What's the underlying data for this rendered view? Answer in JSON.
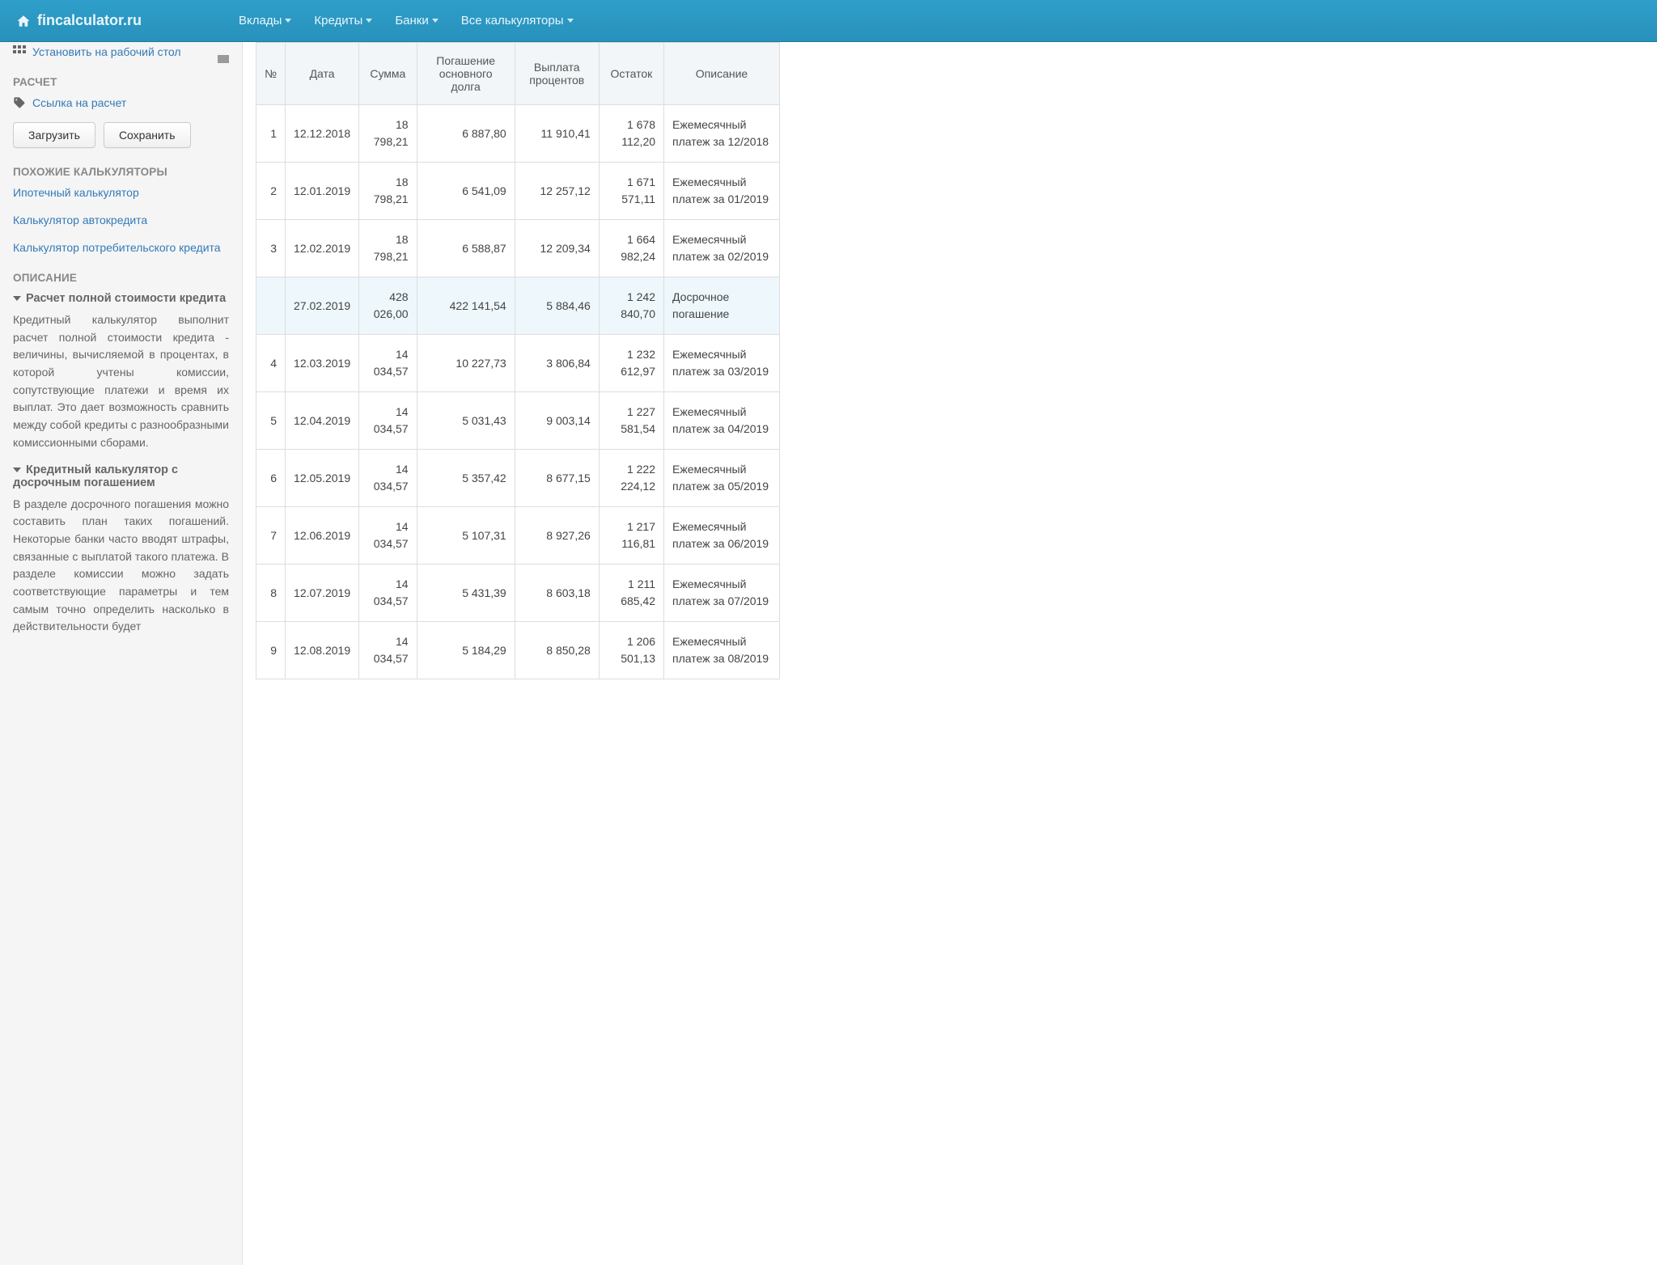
{
  "navbar": {
    "brand": "fincalculator.ru",
    "menu": [
      "Вклады",
      "Кредиты",
      "Банки",
      "Все калькуляторы"
    ]
  },
  "sidebar": {
    "install_link": "Установить на рабочий стол",
    "sections": {
      "calc_heading": "РАСЧЕТ",
      "calc_link": "Ссылка на расчет",
      "btn_load": "Загрузить",
      "btn_save": "Сохранить",
      "similar_heading": "ПОХОЖИЕ КАЛЬКУЛЯТОРЫ",
      "similar_links": [
        "Ипотечный калькулятор",
        "Калькулятор автокредита",
        "Калькулятор потребительского кредита"
      ],
      "desc_heading": "ОПИСАНИЕ",
      "desc1_title": "Расчет полной стоимости кредита",
      "desc1_body": "Кредитный калькулятор выполнит расчет полной стоимости кредита - величины, вычисляемой в процентах, в которой учтены комиссии, сопутствующие платежи и время их выплат. Это дает возможность сравнить между собой кредиты с разнообразными комиссионными сборами.",
      "desc2_title": "Кредитный калькулятор с досрочным погашением",
      "desc2_body": "В разделе досрочного погашения можно составить план таких погашений. Некоторые банки часто вводят штрафы, связанные с выплатой такого платежа. В разделе комиссии можно задать соответствующие параметры и тем самым точно определить насколько в действительности будет"
    }
  },
  "table": {
    "columns": [
      "№",
      "Дата",
      "Сумма",
      "Погашение основного долга",
      "Выплата процентов",
      "Остаток",
      "Описание"
    ],
    "rows": [
      {
        "idx": "1",
        "date": "12.12.2018",
        "sum": "18 798,21",
        "princ": "6 887,80",
        "intr": "11 910,41",
        "rem": "1 678 112,20",
        "desc": "Ежемесячный платеж за 12/2018",
        "hl": false
      },
      {
        "idx": "2",
        "date": "12.01.2019",
        "sum": "18 798,21",
        "princ": "6 541,09",
        "intr": "12 257,12",
        "rem": "1 671 571,11",
        "desc": "Ежемесячный платеж за 01/2019",
        "hl": false
      },
      {
        "idx": "3",
        "date": "12.02.2019",
        "sum": "18 798,21",
        "princ": "6 588,87",
        "intr": "12 209,34",
        "rem": "1 664 982,24",
        "desc": "Ежемесячный платеж за 02/2019",
        "hl": false
      },
      {
        "idx": "",
        "date": "27.02.2019",
        "sum": "428 026,00",
        "princ": "422 141,54",
        "intr": "5 884,46",
        "rem": "1 242 840,70",
        "desc": "Досрочное погашение",
        "hl": true
      },
      {
        "idx": "4",
        "date": "12.03.2019",
        "sum": "14 034,57",
        "princ": "10 227,73",
        "intr": "3 806,84",
        "rem": "1 232 612,97",
        "desc": "Ежемесячный платеж за 03/2019",
        "hl": false
      },
      {
        "idx": "5",
        "date": "12.04.2019",
        "sum": "14 034,57",
        "princ": "5 031,43",
        "intr": "9 003,14",
        "rem": "1 227 581,54",
        "desc": "Ежемесячный платеж за 04/2019",
        "hl": false
      },
      {
        "idx": "6",
        "date": "12.05.2019",
        "sum": "14 034,57",
        "princ": "5 357,42",
        "intr": "8 677,15",
        "rem": "1 222 224,12",
        "desc": "Ежемесячный платеж за 05/2019",
        "hl": false
      },
      {
        "idx": "7",
        "date": "12.06.2019",
        "sum": "14 034,57",
        "princ": "5 107,31",
        "intr": "8 927,26",
        "rem": "1 217 116,81",
        "desc": "Ежемесячный платеж за 06/2019",
        "hl": false
      },
      {
        "idx": "8",
        "date": "12.07.2019",
        "sum": "14 034,57",
        "princ": "5 431,39",
        "intr": "8 603,18",
        "rem": "1 211 685,42",
        "desc": "Ежемесячный платеж за 07/2019",
        "hl": false
      },
      {
        "idx": "9",
        "date": "12.08.2019",
        "sum": "14 034,57",
        "princ": "5 184,29",
        "intr": "8 850,28",
        "rem": "1 206 501,13",
        "desc": "Ежемесячный платеж за 08/2019",
        "hl": false
      }
    ]
  },
  "colors": {
    "navbar_bg": "#2891bb",
    "link": "#337ab7",
    "sidebar_bg": "#f5f5f5",
    "header_bg": "#f2f6f8",
    "highlight_bg": "#eef7fb",
    "border": "#dddddd"
  }
}
